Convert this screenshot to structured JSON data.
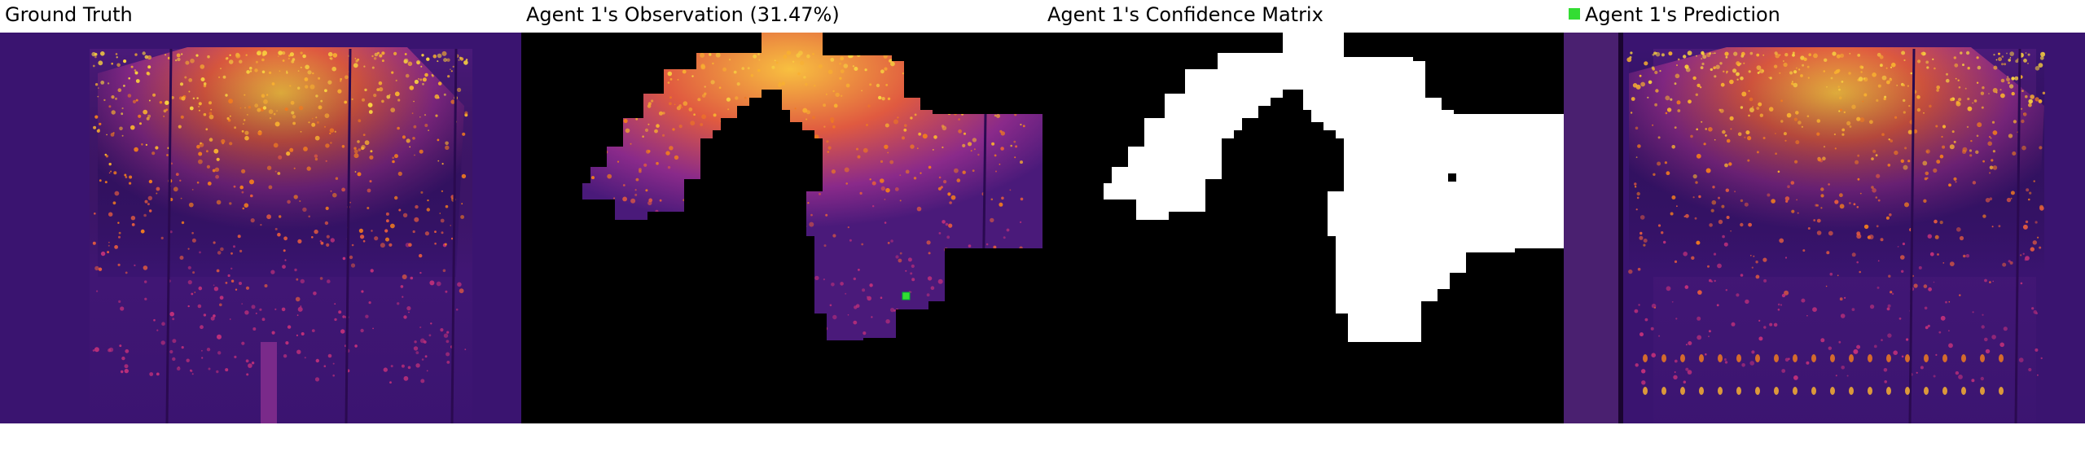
{
  "panels": [
    {
      "title": "Ground Truth"
    },
    {
      "title": "Agent 1's Observation (31.47%)"
    },
    {
      "title": "Agent 1's Confidence Matrix"
    },
    {
      "title": "Agent 1's Prediction"
    }
  ],
  "legend": {
    "marker_color": "#33dd33"
  },
  "colors": {
    "background_dark": "#2a0a5a",
    "mid_purple": "#6a1a8a",
    "magenta": "#c0307a",
    "orange": "#f07a20",
    "yellow": "#f8d040",
    "mask_black": "#000000",
    "mask_white": "#ffffff"
  }
}
